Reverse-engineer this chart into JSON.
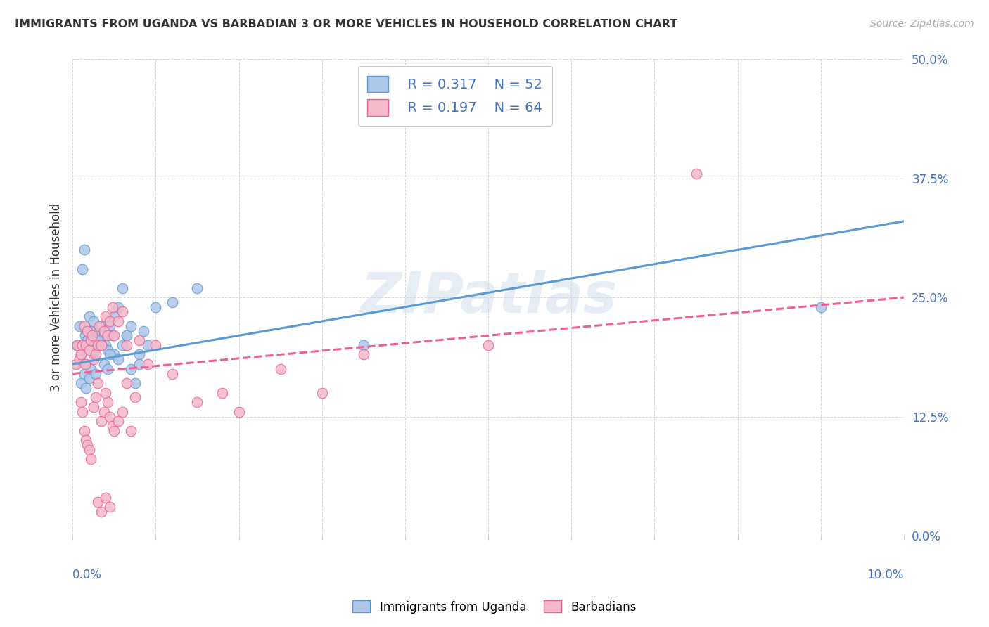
{
  "title": "IMMIGRANTS FROM UGANDA VS BARBADIAN 3 OR MORE VEHICLES IN HOUSEHOLD CORRELATION CHART",
  "source": "Source: ZipAtlas.com",
  "ylabel": "3 or more Vehicles in Household",
  "xlim": [
    0.0,
    10.0
  ],
  "ylim": [
    0.0,
    50.0
  ],
  "yticks": [
    0.0,
    12.5,
    25.0,
    37.5,
    50.0
  ],
  "xticks": [
    0.0,
    1.0,
    2.0,
    3.0,
    4.0,
    5.0,
    6.0,
    7.0,
    8.0,
    9.0,
    10.0
  ],
  "legend_R1": "R = 0.317",
  "legend_N1": "N = 52",
  "legend_R2": "R = 0.197",
  "legend_N2": "N = 64",
  "color_uganda": "#aec6e8",
  "color_barbadian": "#f4b8cb",
  "color_uganda_line": "#5b9bd5",
  "color_barbadian_line": "#f06090",
  "watermark": "ZIPatlas",
  "uganda_x": [
    0.05,
    0.08,
    0.1,
    0.12,
    0.14,
    0.15,
    0.16,
    0.18,
    0.2,
    0.22,
    0.25,
    0.28,
    0.3,
    0.32,
    0.35,
    0.38,
    0.4,
    0.42,
    0.45,
    0.48,
    0.5,
    0.55,
    0.6,
    0.65,
    0.7,
    0.75,
    0.8,
    0.85,
    0.9,
    0.1,
    0.14,
    0.16,
    0.2,
    0.22,
    0.25,
    0.28,
    0.3,
    0.35,
    0.38,
    0.42,
    0.45,
    0.5,
    0.55,
    0.6,
    0.65,
    0.7,
    0.8,
    1.0,
    1.2,
    1.5,
    3.5,
    9.0
  ],
  "uganda_y": [
    20.0,
    22.0,
    19.0,
    28.0,
    30.0,
    21.0,
    18.0,
    20.5,
    23.0,
    21.5,
    22.5,
    20.0,
    21.0,
    20.0,
    22.0,
    21.0,
    20.0,
    19.5,
    22.0,
    21.0,
    19.0,
    18.5,
    20.0,
    21.0,
    17.5,
    16.0,
    19.0,
    21.5,
    20.0,
    16.0,
    17.0,
    15.5,
    16.5,
    17.5,
    19.0,
    17.0,
    20.5,
    20.0,
    18.0,
    17.5,
    19.0,
    23.0,
    24.0,
    26.0,
    21.0,
    22.0,
    18.0,
    24.0,
    24.5,
    26.0,
    20.0,
    24.0
  ],
  "barbadian_x": [
    0.04,
    0.06,
    0.08,
    0.1,
    0.12,
    0.14,
    0.15,
    0.16,
    0.18,
    0.2,
    0.22,
    0.24,
    0.25,
    0.28,
    0.3,
    0.32,
    0.35,
    0.38,
    0.4,
    0.42,
    0.45,
    0.48,
    0.5,
    0.55,
    0.6,
    0.65,
    0.1,
    0.12,
    0.14,
    0.16,
    0.18,
    0.2,
    0.22,
    0.25,
    0.28,
    0.3,
    0.35,
    0.38,
    0.4,
    0.42,
    0.45,
    0.48,
    0.5,
    0.55,
    0.6,
    0.65,
    0.7,
    0.75,
    0.8,
    0.9,
    1.0,
    1.2,
    1.5,
    1.8,
    2.0,
    2.5,
    3.0,
    3.5,
    5.0,
    7.5,
    0.3,
    0.35,
    0.4,
    0.45
  ],
  "barbadian_y": [
    18.0,
    20.0,
    18.5,
    19.0,
    20.0,
    22.0,
    18.0,
    20.0,
    21.5,
    19.5,
    20.5,
    21.0,
    18.5,
    19.0,
    20.0,
    22.0,
    20.0,
    21.5,
    23.0,
    21.0,
    22.5,
    24.0,
    21.0,
    22.5,
    23.5,
    20.0,
    14.0,
    13.0,
    11.0,
    10.0,
    9.5,
    9.0,
    8.0,
    13.5,
    14.5,
    16.0,
    12.0,
    13.0,
    15.0,
    14.0,
    12.5,
    11.5,
    11.0,
    12.0,
    13.0,
    16.0,
    11.0,
    14.5,
    20.5,
    18.0,
    20.0,
    17.0,
    14.0,
    15.0,
    13.0,
    17.5,
    15.0,
    19.0,
    20.0,
    38.0,
    3.5,
    2.5,
    4.0,
    3.0
  ]
}
